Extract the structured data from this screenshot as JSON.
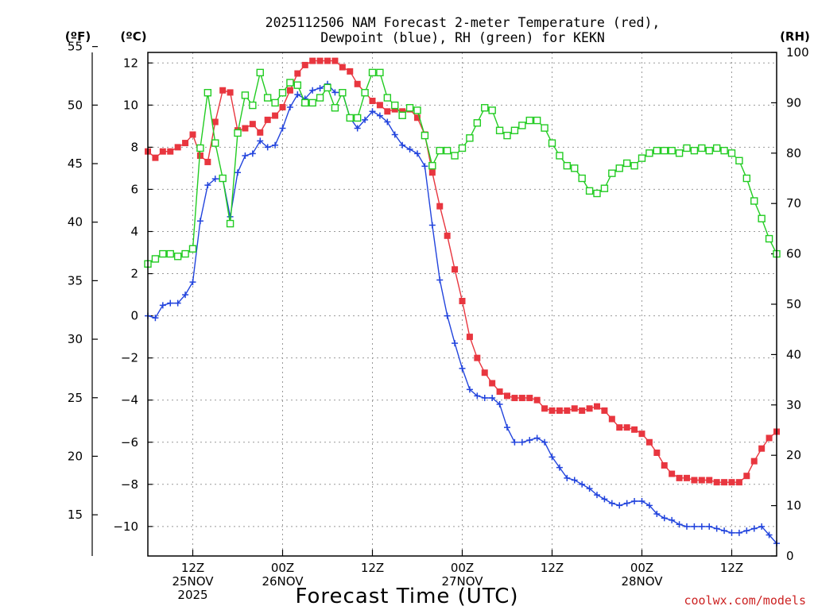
{
  "chart_data": {
    "type": "line",
    "title_line1": "2025112506 NAM Forecast 2-meter Temperature (red),",
    "title_line2": "Dewpoint (blue), RH (green) for KEKN",
    "xlabel": "Forecast Time (UTC)",
    "unit_f": "(ºF)",
    "unit_c": "(ºC)",
    "unit_rh": "(RH)",
    "watermark": "coolwx.com/models",
    "x_ticks": [
      {
        "hour": 6,
        "labels": [
          "12Z",
          "25NOV",
          "2025"
        ]
      },
      {
        "hour": 18,
        "labels": [
          "00Z",
          "26NOV"
        ]
      },
      {
        "hour": 30,
        "labels": [
          "12Z"
        ]
      },
      {
        "hour": 42,
        "labels": [
          "00Z",
          "27NOV"
        ]
      },
      {
        "hour": 54,
        "labels": [
          "12Z"
        ]
      },
      {
        "hour": 66,
        "labels": [
          "00Z",
          "28NOV"
        ]
      },
      {
        "hour": 78,
        "labels": [
          "12Z"
        ]
      }
    ],
    "xlim": [
      0,
      84
    ],
    "ylim_c": [
      -11.4,
      12.5
    ],
    "yticks_c": [
      -10,
      -8,
      -6,
      -4,
      -2,
      0,
      2,
      4,
      6,
      8,
      10,
      12
    ],
    "yticks_f": [
      15,
      20,
      25,
      30,
      35,
      40,
      45,
      50,
      55
    ],
    "ylim_rh": [
      0,
      100
    ],
    "yticks_rh": [
      0,
      10,
      20,
      30,
      40,
      50,
      60,
      70,
      80,
      90,
      100
    ],
    "grid": true,
    "series": [
      {
        "name": "Temperature",
        "color": "#e8363f",
        "marker": "square-filled",
        "axis": "c",
        "x": [
          0,
          1,
          2,
          3,
          4,
          5,
          6,
          7,
          8,
          9,
          10,
          11,
          12,
          13,
          14,
          15,
          16,
          17,
          18,
          19,
          20,
          21,
          22,
          23,
          24,
          25,
          26,
          27,
          28,
          29,
          30,
          31,
          32,
          33,
          34,
          35,
          36,
          37,
          38,
          39,
          40,
          41,
          42,
          43,
          44,
          45,
          46,
          47,
          48,
          49,
          50,
          51,
          52,
          53,
          54,
          55,
          56,
          57,
          58,
          59,
          60,
          61,
          62,
          63,
          64,
          65,
          66,
          67,
          68,
          69,
          70,
          71,
          72,
          73,
          74,
          75,
          76,
          77,
          78,
          79,
          80,
          81,
          82,
          83,
          84
        ],
        "values": [
          7.8,
          7.5,
          7.8,
          7.8,
          8.0,
          8.2,
          8.6,
          7.6,
          7.3,
          9.2,
          10.7,
          10.6,
          8.8,
          8.9,
          9.1,
          8.7,
          9.3,
          9.5,
          9.9,
          10.7,
          11.5,
          11.9,
          12.1,
          12.1,
          12.1,
          12.1,
          11.8,
          11.6,
          11.0,
          10.6,
          10.2,
          10.0,
          9.7,
          9.8,
          9.7,
          9.8,
          9.4,
          8.6,
          6.8,
          5.2,
          3.8,
          2.2,
          0.7,
          -1.0,
          -2.0,
          -2.7,
          -3.2,
          -3.6,
          -3.8,
          -3.9,
          -3.9,
          -3.9,
          -4.0,
          -4.4,
          -4.5,
          -4.5,
          -4.5,
          -4.4,
          -4.5,
          -4.4,
          -4.3,
          -4.5,
          -4.9,
          -5.3,
          -5.3,
          -5.4,
          -5.6,
          -6.0,
          -6.5,
          -7.1,
          -7.5,
          -7.7,
          -7.7,
          -7.8,
          -7.8,
          -7.8,
          -7.9,
          -7.9,
          -7.9,
          -7.9,
          -7.6,
          -6.9,
          -6.3,
          -5.8,
          -5.5
        ]
      },
      {
        "name": "Dewpoint",
        "color": "#2244dd",
        "marker": "plus",
        "axis": "c",
        "x": [
          0,
          1,
          2,
          3,
          4,
          5,
          6,
          7,
          8,
          9,
          10,
          11,
          12,
          13,
          14,
          15,
          16,
          17,
          18,
          19,
          20,
          21,
          22,
          23,
          24,
          25,
          26,
          27,
          28,
          29,
          30,
          31,
          32,
          33,
          34,
          35,
          36,
          37,
          38,
          39,
          40,
          41,
          42,
          43,
          44,
          45,
          46,
          47,
          48,
          49,
          50,
          51,
          52,
          53,
          54,
          55,
          56,
          57,
          58,
          59,
          60,
          61,
          62,
          63,
          64,
          65,
          66,
          67,
          68,
          69,
          70,
          71,
          72,
          73,
          74,
          75,
          76,
          77,
          78,
          79,
          80,
          81,
          82,
          83,
          84
        ],
        "values": [
          0.0,
          -0.1,
          0.5,
          0.6,
          0.6,
          1.0,
          1.6,
          4.5,
          6.2,
          6.5,
          6.5,
          4.7,
          6.8,
          7.6,
          7.7,
          8.3,
          8.0,
          8.1,
          8.9,
          9.9,
          10.5,
          10.3,
          10.7,
          10.8,
          11.0,
          10.6,
          10.6,
          9.4,
          8.9,
          9.3,
          9.7,
          9.5,
          9.2,
          8.6,
          8.1,
          7.9,
          7.7,
          7.1,
          4.3,
          1.7,
          0.0,
          -1.3,
          -2.5,
          -3.5,
          -3.8,
          -3.9,
          -3.9,
          -4.2,
          -5.3,
          -6.0,
          -6.0,
          -5.9,
          -5.8,
          -6.0,
          -6.7,
          -7.2,
          -7.7,
          -7.8,
          -8.0,
          -8.2,
          -8.5,
          -8.7,
          -8.9,
          -9.0,
          -8.9,
          -8.8,
          -8.8,
          -9.0,
          -9.4,
          -9.6,
          -9.7,
          -9.9,
          -10.0,
          -10.0,
          -10.0,
          -10.0,
          -10.1,
          -10.2,
          -10.3,
          -10.3,
          -10.2,
          -10.1,
          -10.0,
          -10.4,
          -10.8
        ]
      },
      {
        "name": "RH",
        "color": "#22cc22",
        "marker": "square-open",
        "axis": "rh",
        "x": [
          0,
          1,
          2,
          3,
          4,
          5,
          6,
          7,
          8,
          9,
          10,
          11,
          12,
          13,
          14,
          15,
          16,
          17,
          18,
          19,
          20,
          21,
          22,
          23,
          24,
          25,
          26,
          27,
          28,
          29,
          30,
          31,
          32,
          33,
          34,
          35,
          36,
          37,
          38,
          39,
          40,
          41,
          42,
          43,
          44,
          45,
          46,
          47,
          48,
          49,
          50,
          51,
          52,
          53,
          54,
          55,
          56,
          57,
          58,
          59,
          60,
          61,
          62,
          63,
          64,
          65,
          66,
          67,
          68,
          69,
          70,
          71,
          72,
          73,
          74,
          75,
          76,
          77,
          78,
          79,
          80,
          81,
          82,
          83,
          84
        ],
        "values": [
          58,
          59,
          60,
          60,
          59.5,
          60,
          61,
          81,
          92,
          82,
          75,
          66,
          84,
          91.5,
          89.5,
          96,
          91,
          90,
          92,
          94,
          93.5,
          90,
          90,
          91,
          93,
          89,
          92,
          87,
          87,
          92,
          96,
          96,
          91,
          89.5,
          87.5,
          89,
          88.5,
          83.5,
          77.5,
          80.5,
          80.5,
          79.5,
          81,
          83,
          86,
          89,
          88.5,
          84.5,
          83.5,
          84.5,
          85.5,
          86.5,
          86.5,
          85,
          82,
          79.5,
          77.5,
          77,
          75,
          72.5,
          72,
          73,
          76,
          77,
          78,
          77.5,
          79,
          80,
          80.5,
          80.5,
          80.5,
          80,
          81,
          80.5,
          81,
          80.5,
          81,
          80.5,
          80,
          78.5,
          75,
          70.5,
          67,
          63,
          60
        ]
      }
    ]
  }
}
